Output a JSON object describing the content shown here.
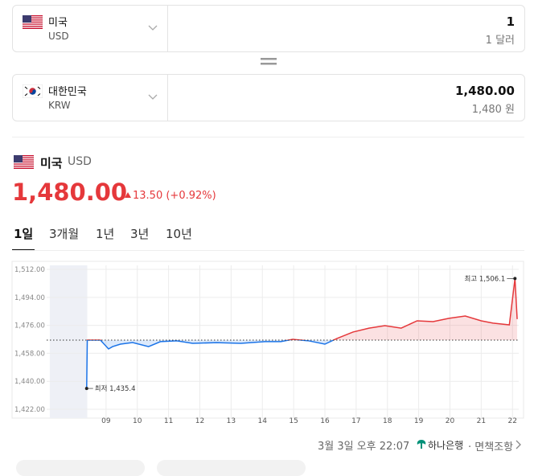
{
  "converter": {
    "from": {
      "country": "미국",
      "code": "USD",
      "amount": "1",
      "amount_text": "1 달러"
    },
    "to": {
      "country": "대한민국",
      "code": "KRW",
      "amount": "1,480.00",
      "amount_text": "1,480 원"
    }
  },
  "summary": {
    "country": "미국",
    "code": "USD",
    "rate": "1,480.00",
    "change": "13.50 (+0.92%)"
  },
  "tabs": [
    "1일",
    "3개월",
    "1년",
    "3년",
    "10년"
  ],
  "chart_data": {
    "type": "line",
    "x": [
      8.38,
      8.4,
      8.82,
      9.08,
      9.21,
      9.46,
      9.85,
      10.36,
      10.74,
      11.26,
      11.77,
      12.54,
      13.31,
      14.08,
      14.59,
      14.97,
      15.49,
      16.0,
      16.38,
      16.9,
      17.41,
      17.92,
      18.44,
      18.95,
      19.46,
      19.97,
      20.49,
      21.0,
      21.38,
      21.9,
      22.08,
      22.15
    ],
    "values": [
      1435.4,
      1466.5,
      1466.5,
      1460.8,
      1462.3,
      1463.9,
      1464.9,
      1462.3,
      1465.5,
      1466,
      1464.4,
      1464.9,
      1464.4,
      1465.5,
      1465.5,
      1467,
      1466,
      1463.9,
      1467.5,
      1471.7,
      1474.2,
      1475.8,
      1474.2,
      1478.9,
      1478.4,
      1480.5,
      1482,
      1478.9,
      1477.4,
      1476.3,
      1506.1,
      1480
    ],
    "up_color": "#e5383b",
    "down_color": "#1a73e8",
    "baseline": 1466.5,
    "shaded_range": [
      7.2,
      8.4
    ],
    "xlim": [
      7.1,
      22.2
    ],
    "ylim": [
      1416.3,
      1514.6
    ],
    "xticks": [
      {
        "value": 9,
        "label": "09"
      },
      10,
      11,
      12,
      13,
      14,
      15,
      16,
      17,
      18,
      19,
      20,
      21,
      22
    ],
    "yticks": [
      {
        "value": 1422,
        "label": "1,422.00"
      },
      {
        "value": 1440,
        "label": "1,440.00"
      },
      {
        "value": 1458,
        "label": "1,458.00"
      },
      {
        "value": 1476,
        "label": "1,476.00"
      },
      {
        "value": 1494,
        "label": "1,494.00"
      },
      {
        "value": 1512,
        "label": "1,512.00"
      }
    ],
    "grid": true,
    "annotations": [
      {
        "text": "최고 1,506.1",
        "x": 22.08,
        "y": 1506.1
      },
      {
        "text": "최저 1,435.4",
        "x": 8.38,
        "y": 1435.4
      }
    ]
  },
  "footer": {
    "timestamp": "3월 3일 오후 22:07",
    "bank": "하나은행",
    "disclaimer": "· 면책조항"
  }
}
